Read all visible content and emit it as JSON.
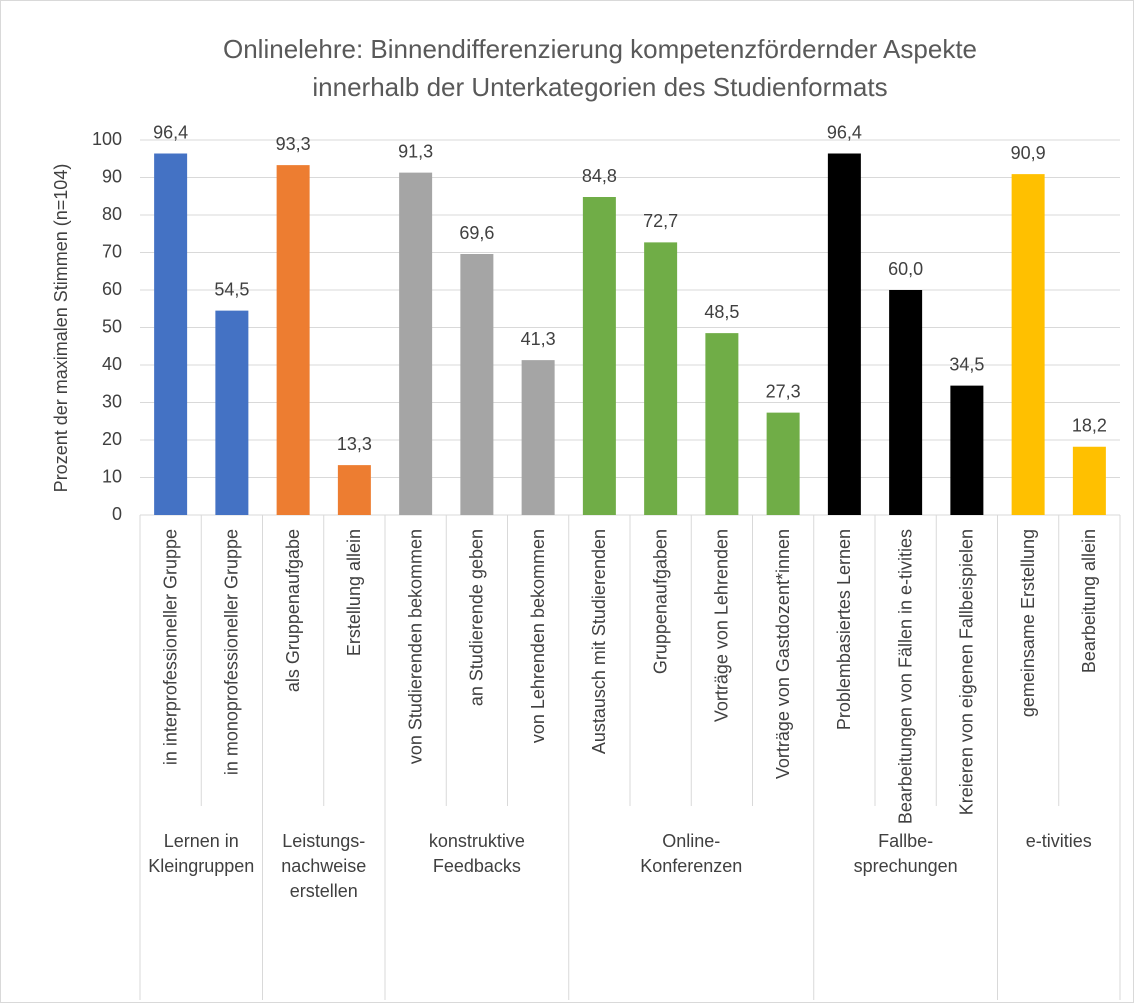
{
  "chart_data": {
    "type": "bar",
    "title": [
      "Onlinelehre: Binnendifferenzierung kompetenzfördernder Aspekte",
      "innerhalb der Unterkategorien des Studienformats"
    ],
    "y_label": "Prozent der maximalen Stimmen (n=104)",
    "ylim": [
      0,
      100
    ],
    "yticks": [
      0,
      10,
      20,
      30,
      40,
      50,
      60,
      70,
      80,
      90,
      100
    ],
    "grid": true,
    "groups": [
      {
        "label": [
          "Lernen in",
          "Kleingruppen"
        ],
        "color": "#4472c4",
        "categories": [
          "in interprofessioneller Gruppe",
          "in monoprofessioneller Gruppe"
        ],
        "values": [
          96.4,
          54.5
        ],
        "value_labels": [
          "96,4",
          "54,5"
        ]
      },
      {
        "label": [
          "Leistungs-",
          "nachweise",
          "erstellen"
        ],
        "color": "#ed7d31",
        "categories": [
          "als Gruppenaufgabe",
          "Erstellung allein"
        ],
        "values": [
          93.3,
          13.3
        ],
        "value_labels": [
          "93,3",
          "13,3"
        ]
      },
      {
        "label": [
          "konstruktive",
          "Feedbacks"
        ],
        "color": "#a5a5a5",
        "categories": [
          "von Studierenden bekommen",
          "an Studierende geben",
          "von Lehrenden bekommen"
        ],
        "values": [
          91.3,
          69.6,
          41.3
        ],
        "value_labels": [
          "91,3",
          "69,6",
          "41,3"
        ]
      },
      {
        "label": [
          "Online-",
          "Konferenzen"
        ],
        "color": "#70ad47",
        "categories": [
          "Austausch mit Studierenden",
          "Gruppenaufgaben",
          "Vorträge von Lehrenden",
          "Vorträge von Gastdozent*innen"
        ],
        "values": [
          84.8,
          72.7,
          48.5,
          27.3
        ],
        "value_labels": [
          "84,8",
          "72,7",
          "48,5",
          "27,3"
        ]
      },
      {
        "label": [
          "Fallbe-",
          "sprechungen"
        ],
        "color": "#000000",
        "categories": [
          "Problembasiertes Lernen",
          "Bearbeitungen von Fällen in e-tivities",
          "Kreieren von eigenen Fallbeispielen"
        ],
        "values": [
          96.4,
          60.0,
          34.5
        ],
        "value_labels": [
          "96,4",
          "60,0",
          "34,5"
        ]
      },
      {
        "label": [
          "e-tivities"
        ],
        "color": "#ffc000",
        "categories": [
          "gemeinsame Erstellung",
          "Bearbeitung allein"
        ],
        "values": [
          90.9,
          18.2
        ],
        "value_labels": [
          "90,9",
          "18,2"
        ]
      }
    ]
  }
}
